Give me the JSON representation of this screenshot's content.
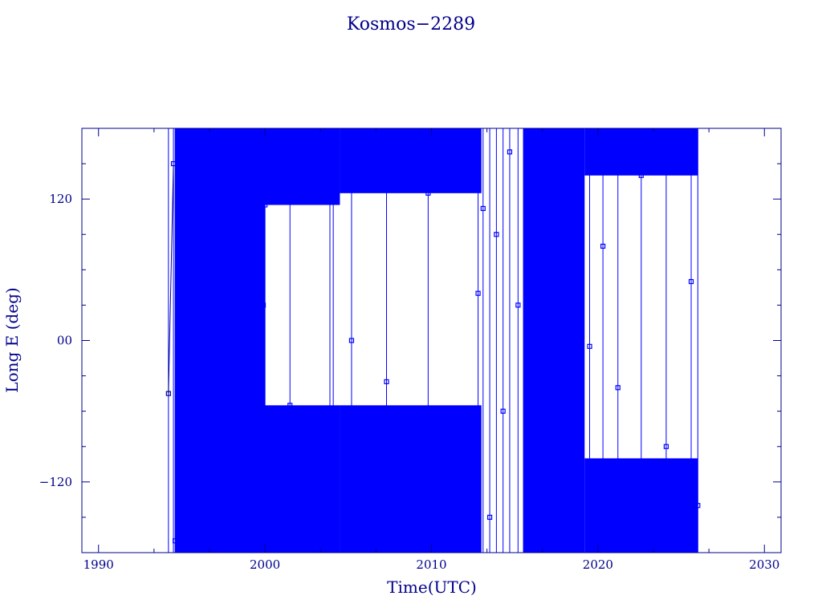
{
  "chart_data": {
    "type": "scatter",
    "title": "Kosmos−2289",
    "xlabel": "Time(UTC)",
    "ylabel": "Long E (deg)",
    "xlim": [
      1989,
      2031
    ],
    "ylim": [
      -180,
      180
    ],
    "x_ticks": [
      1990,
      2000,
      2010,
      2020,
      2030
    ],
    "x_tick_labels": [
      "1990",
      "2000",
      "2010",
      "2020",
      "2030"
    ],
    "y_ticks": [
      -120,
      0,
      120
    ],
    "y_tick_labels": [
      "−120",
      "00",
      "120"
    ],
    "grid": false,
    "colors": {
      "frame": "#00008b",
      "data": "#0000ff"
    },
    "series": [
      {
        "marker": "square-with-line",
        "x": [
          1994.2,
          1994.5,
          1994.6,
          1997.5,
          1999.9,
          2000.0,
          2001.5,
          2003.9,
          2004.1,
          2005.2,
          2007.3,
          2009.8,
          2012.8,
          2013.1,
          2013.5,
          2013.9,
          2014.3,
          2014.7,
          2015.2,
          2016.8,
          2019.5,
          2020.3,
          2021.2,
          2022.6,
          2024.1,
          2025.6,
          2026.0
        ],
        "y": [
          -45,
          150,
          -170,
          -10,
          30,
          115,
          -55,
          -75,
          175,
          0,
          -35,
          125,
          40,
          112,
          -150,
          90,
          -60,
          160,
          30,
          -100,
          -5,
          80,
          -40,
          140,
          -90,
          50,
          -140
        ]
      }
    ],
    "dense_coverage": {
      "description_bands": [
        {
          "x_start": 1994.6,
          "x_end": 2000.0,
          "y_range": [
            -180,
            180
          ]
        },
        {
          "x_start": 2000.0,
          "x_end": 2004.5,
          "y_range": [
            -180,
            -55
          ]
        },
        {
          "x_start": 2000.0,
          "x_end": 2004.5,
          "y_range": [
            115,
            180
          ]
        },
        {
          "x_start": 2004.5,
          "x_end": 2013.0,
          "y_range": [
            -180,
            -55
          ]
        },
        {
          "x_start": 2004.5,
          "x_end": 2013.0,
          "y_range": [
            125,
            180
          ]
        },
        {
          "x_start": 2015.5,
          "x_end": 2019.2,
          "y_range": [
            -180,
            180
          ]
        },
        {
          "x_start": 2019.2,
          "x_end": 2026.0,
          "y_range": [
            -180,
            -100
          ]
        },
        {
          "x_start": 2019.2,
          "x_end": 2026.0,
          "y_range": [
            140,
            180
          ]
        }
      ]
    }
  }
}
